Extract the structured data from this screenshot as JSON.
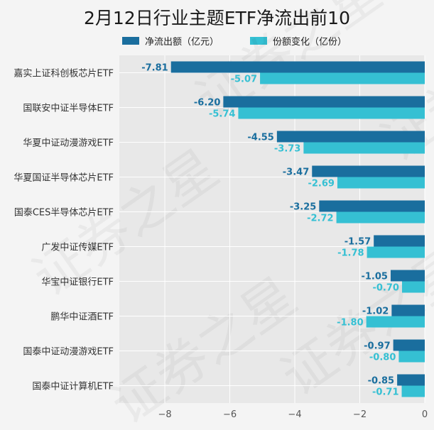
{
  "chart_data": {
    "type": "bar",
    "orientation": "horizontal",
    "title": "2月12日行业主题ETF净流出前10",
    "categories": [
      "嘉实上证科创板芯片ETF",
      "国联安中证半导体ETF",
      "华夏中证动漫游戏ETF",
      "华夏国证半导体芯片ETF",
      "国泰CES半导体芯片ETF",
      "广发中证传媒ETF",
      "华宝中证银行ETF",
      "鹏华中证酒ETF",
      "国泰中证动漫游戏ETF",
      "国泰中证计算机ETF"
    ],
    "series": [
      {
        "name": "净流出额（亿元）",
        "color": "#1a6e9e",
        "values": [
          -7.81,
          -6.2,
          -4.55,
          -3.47,
          -3.25,
          -1.57,
          -1.05,
          -1.02,
          -0.97,
          -0.85
        ],
        "labels": [
          "-7.81",
          "-6.20",
          "-4.55",
          "-3.47",
          "-3.25",
          "-1.57",
          "-1.05",
          "-1.02",
          "-0.97",
          "-0.85"
        ]
      },
      {
        "name": "份额变化（亿份）",
        "color": "#35c0d3",
        "values": [
          -5.07,
          -5.74,
          -3.73,
          -2.69,
          -2.72,
          -1.78,
          -0.7,
          -1.8,
          -0.8,
          -0.71
        ],
        "labels": [
          "-5.07",
          "-5.74",
          "-3.73",
          "-2.69",
          "-2.72",
          "-1.78",
          "-0.70",
          "-1.80",
          "-0.80",
          "-0.71"
        ]
      }
    ],
    "xlim": [
      -9.4,
      0
    ],
    "xticks": [
      -8,
      -6,
      -4,
      -2,
      0
    ],
    "xtick_labels": [
      "−8",
      "−6",
      "−4",
      "−2",
      "0"
    ],
    "grid": true,
    "legend_position": "top",
    "plot_background": "#e8e8e8",
    "watermark": "证券之星"
  }
}
